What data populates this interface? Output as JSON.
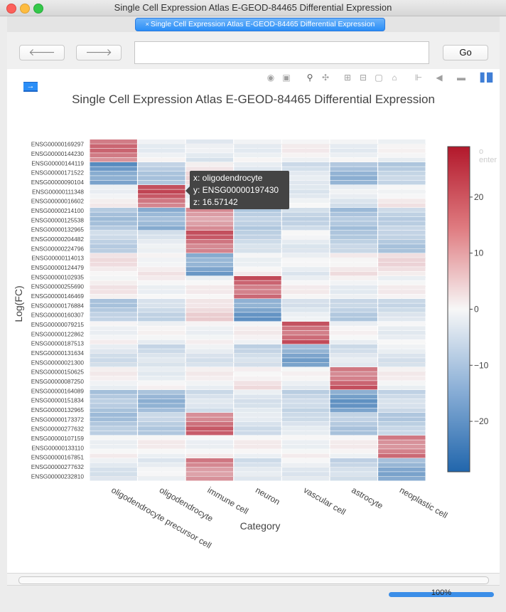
{
  "window": {
    "title": "Single Cell Expression Atlas E-GEOD-84465 Differential Expression"
  },
  "tab": {
    "label": "Single Cell Expression Atlas E-GEOD-84465 Differential Expression",
    "close": "×"
  },
  "nav": {
    "back": "🡐",
    "forward": "🡒",
    "url": "",
    "go_label": "Go"
  },
  "export_button": {
    "glyph": "→"
  },
  "modebar": [
    "camera-icon",
    "save-icon",
    "zoom-icon",
    "pan-icon",
    "zoom-in-icon",
    "zoom-out-icon",
    "autoscale-icon",
    "reset-axes-icon",
    "spike-lines-icon",
    "hover-closest-icon",
    "hover-compare-icon",
    "plotly-logo-icon"
  ],
  "ghost_text": "o enter",
  "tooltip": {
    "line_x": "x: oligodendrocyte",
    "line_y": "y: ENSG00000197430",
    "line_z": "z: 16.57142"
  },
  "status": {
    "zoom": "100%"
  },
  "chart_data": {
    "type": "heatmap",
    "title": "Single Cell Expression Atlas E-GEOD-84465 Differential Expression",
    "xlabel": "Category",
    "ylabel": "Log(FC)",
    "categories": [
      "oligodendrocyte precursor cell",
      "oligodendrocyte",
      "immune cell",
      "neuron",
      "vascular cell",
      "astrocyte",
      "neoplastic cell"
    ],
    "y_tick_labels": [
      "ENSG00000169297",
      "ENSG00000144230",
      "ENSG00000144119",
      "ENSG00000171522",
      "ENSG00000090104",
      "ENSG00000111348",
      "ENSG00000016602",
      "ENSG00000214100",
      "ENSG00000125538",
      "ENSG00000132965",
      "ENSG00000204482",
      "ENSG00000224796",
      "ENSG00000114013",
      "ENSG00000124479",
      "ENSG00000102935",
      "ENSG00000255690",
      "ENSG00000146469",
      "ENSG00000176884",
      "ENSG00000160307",
      "ENSG00000079215",
      "ENSG00000122862",
      "ENSG00000187513",
      "ENSG00000131634",
      "ENSG00000021300",
      "ENSG00000150625",
      "ENSG00000087250",
      "ENSG00000164089",
      "ENSG00000151834",
      "ENSG00000132965",
      "ENSG00000173372",
      "ENSG00000277632",
      "ENSG00000107159",
      "ENSG00000133110",
      "ENSG00000167851",
      "ENSG00000277632",
      "ENSG00000232810"
    ],
    "blocks": [
      {
        "rows": [
          0,
          5
        ],
        "values": [
          16,
          -1,
          -3,
          -1,
          0,
          -1,
          -1
        ]
      },
      {
        "rows": [
          5,
          10
        ],
        "values": [
          -18,
          -9,
          3,
          -4,
          -4,
          -12,
          -8
        ]
      },
      {
        "rows": [
          10,
          15
        ],
        "values": [
          0,
          19,
          -2,
          -1,
          -2,
          -3,
          1
        ]
      },
      {
        "rows": [
          15,
          20
        ],
        "values": [
          -10,
          -14,
          13,
          -9,
          -6,
          -11,
          -7
        ]
      },
      {
        "rows": [
          20,
          25
        ],
        "values": [
          -7,
          -3,
          18,
          -6,
          -2,
          -8,
          -9
        ]
      },
      {
        "rows": [
          25,
          30
        ],
        "values": [
          2,
          1,
          -16,
          0,
          -2,
          2,
          3
        ]
      },
      {
        "rows": [
          30,
          35
        ],
        "values": [
          1,
          0,
          0,
          19,
          0,
          -1,
          0
        ]
      },
      {
        "rows": [
          35,
          40
        ],
        "values": [
          -9,
          -6,
          4,
          -17,
          -3,
          -8,
          -5
        ]
      },
      {
        "rows": [
          40,
          45
        ],
        "values": [
          0,
          -1,
          0,
          0,
          20,
          -1,
          -1
        ]
      },
      {
        "rows": [
          45,
          50
        ],
        "values": [
          -4,
          -5,
          -3,
          -6,
          -15,
          -4,
          -3
        ]
      },
      {
        "rows": [
          50,
          55
        ],
        "values": [
          0,
          -1,
          0,
          2,
          -1,
          18,
          0
        ]
      },
      {
        "rows": [
          55,
          60
        ],
        "values": [
          -10,
          -12,
          -5,
          -3,
          -7,
          -17,
          -6
        ]
      },
      {
        "rows": [
          60,
          65
        ],
        "values": [
          -10,
          -8,
          17,
          -4,
          -4,
          -9,
          -8
        ]
      },
      {
        "rows": [
          65,
          70
        ],
        "values": [
          0,
          0,
          0,
          0,
          0,
          0,
          16
        ]
      },
      {
        "rows": [
          70,
          75
        ],
        "values": [
          -3,
          -2,
          14,
          -4,
          -2,
          -6,
          -14
        ]
      }
    ],
    "colorbar": {
      "ticks": [
        20,
        10,
        0,
        -10,
        -20
      ],
      "min": -29,
      "max": 29
    },
    "colorscale": [
      "#2166ac",
      "#f7f7f7",
      "#b2182b"
    ]
  }
}
